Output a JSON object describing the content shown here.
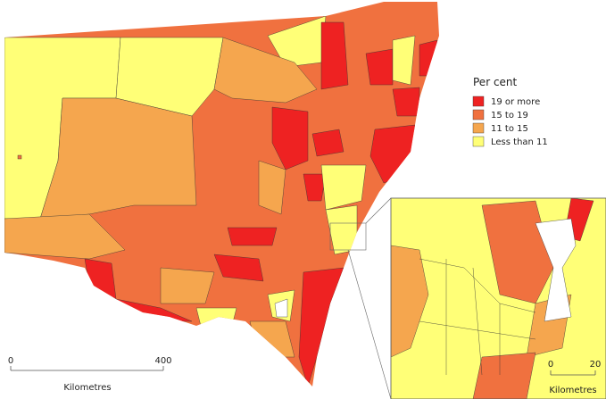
{
  "legend": {
    "title": "Per cent",
    "items": [
      {
        "label": "19 or more",
        "color": "#ee2222"
      },
      {
        "label": "15 to 19",
        "color": "#f0713f"
      },
      {
        "label": "11 to 15",
        "color": "#f5a64e"
      },
      {
        "label": "Less than 11",
        "color": "#ffff77"
      }
    ]
  },
  "scale_bar": {
    "start": 0,
    "end": 400,
    "unit": "Kilometres"
  },
  "inset_scale_bar": {
    "start": 0,
    "end": 20,
    "unit": "Kilometres"
  }
}
